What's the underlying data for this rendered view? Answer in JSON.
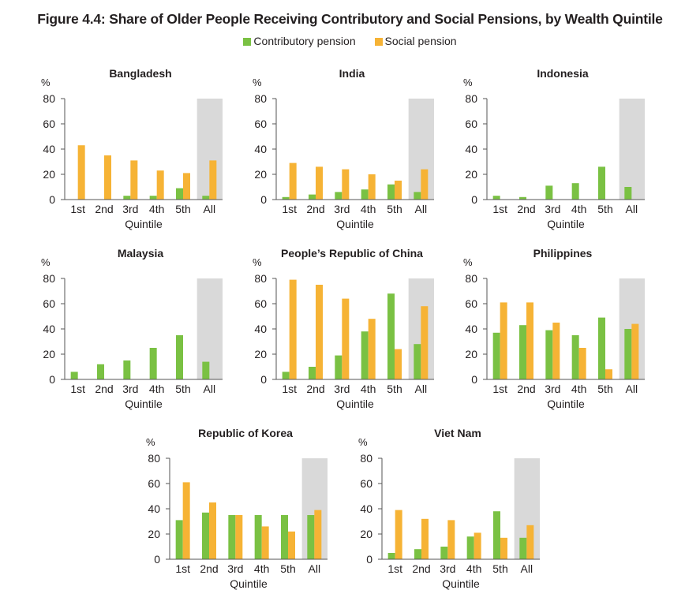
{
  "title": "Figure 4.4: Share of Older People Receiving Contributory and Social Pensions, by Wealth Quintile",
  "legend": {
    "contributory": "Contributory pension",
    "social": "Social pension"
  },
  "colors": {
    "contributory": "#7ac143",
    "social": "#f6b335",
    "all_shade": "#d9d9d9",
    "axis": "#555555"
  },
  "chart_data": [
    {
      "type": "bar",
      "title": "Bangladesh",
      "ylabel": "%",
      "xlabel": "Quintile",
      "ylim": [
        0,
        80
      ],
      "yticks": [
        0,
        20,
        40,
        60,
        80
      ],
      "categories": [
        "1st",
        "2nd",
        "3rd",
        "4th",
        "5th",
        "All"
      ],
      "series": [
        {
          "name": "Contributory pension",
          "values": [
            0,
            0,
            3,
            3,
            9,
            3
          ]
        },
        {
          "name": "Social pension",
          "values": [
            43,
            35,
            31,
            23,
            21,
            31
          ]
        }
      ]
    },
    {
      "type": "bar",
      "title": "India",
      "ylabel": "%",
      "xlabel": "Quintile",
      "ylim": [
        0,
        80
      ],
      "yticks": [
        0,
        20,
        40,
        60,
        80
      ],
      "categories": [
        "1st",
        "2nd",
        "3rd",
        "4th",
        "5th",
        "All"
      ],
      "series": [
        {
          "name": "Contributory pension",
          "values": [
            2,
            4,
            6,
            8,
            12,
            6
          ]
        },
        {
          "name": "Social pension",
          "values": [
            29,
            26,
            24,
            20,
            15,
            24
          ]
        }
      ]
    },
    {
      "type": "bar",
      "title": "Indonesia",
      "ylabel": "%",
      "xlabel": "Quintile",
      "ylim": [
        0,
        80
      ],
      "yticks": [
        0,
        20,
        40,
        60,
        80
      ],
      "categories": [
        "1st",
        "2nd",
        "3rd",
        "4th",
        "5th",
        "All"
      ],
      "series": [
        {
          "name": "Contributory pension",
          "values": [
            3,
            2,
            11,
            13,
            26,
            10
          ]
        },
        {
          "name": "Social pension",
          "values": [
            0,
            0,
            0,
            0,
            0,
            0
          ]
        }
      ]
    },
    {
      "type": "bar",
      "title": "Malaysia",
      "ylabel": "%",
      "xlabel": "Quintile",
      "ylim": [
        0,
        80
      ],
      "yticks": [
        0,
        20,
        40,
        60,
        80
      ],
      "categories": [
        "1st",
        "2nd",
        "3rd",
        "4th",
        "5th",
        "All"
      ],
      "series": [
        {
          "name": "Contributory pension",
          "values": [
            6,
            12,
            15,
            25,
            35,
            14
          ]
        },
        {
          "name": "Social pension",
          "values": [
            0,
            0,
            0,
            0,
            0,
            0
          ]
        }
      ]
    },
    {
      "type": "bar",
      "title": "People’s Republic of China",
      "ylabel": "%",
      "xlabel": "Quintile",
      "ylim": [
        0,
        80
      ],
      "yticks": [
        0,
        20,
        40,
        60,
        80
      ],
      "categories": [
        "1st",
        "2nd",
        "3rd",
        "4th",
        "5th",
        "All"
      ],
      "series": [
        {
          "name": "Contributory pension",
          "values": [
            6,
            10,
            19,
            38,
            68,
            28
          ]
        },
        {
          "name": "Social pension",
          "values": [
            79,
            75,
            64,
            48,
            24,
            58
          ]
        }
      ]
    },
    {
      "type": "bar",
      "title": "Philippines",
      "ylabel": "%",
      "xlabel": "Quintile",
      "ylim": [
        0,
        80
      ],
      "yticks": [
        0,
        20,
        40,
        60,
        80
      ],
      "categories": [
        "1st",
        "2nd",
        "3rd",
        "4th",
        "5th",
        "All"
      ],
      "series": [
        {
          "name": "Contributory pension",
          "values": [
            37,
            43,
            39,
            35,
            49,
            40
          ]
        },
        {
          "name": "Social pension",
          "values": [
            61,
            61,
            45,
            25,
            8,
            44
          ]
        }
      ]
    },
    {
      "type": "bar",
      "title": "Republic of Korea",
      "ylabel": "%",
      "xlabel": "Quintile",
      "ylim": [
        0,
        80
      ],
      "yticks": [
        0,
        20,
        40,
        60,
        80
      ],
      "categories": [
        "1st",
        "2nd",
        "3rd",
        "4th",
        "5th",
        "All"
      ],
      "series": [
        {
          "name": "Contributory pension",
          "values": [
            31,
            37,
            35,
            35,
            35,
            35
          ]
        },
        {
          "name": "Social pension",
          "values": [
            61,
            45,
            35,
            26,
            22,
            39
          ]
        }
      ]
    },
    {
      "type": "bar",
      "title": "Viet Nam",
      "ylabel": "%",
      "xlabel": "Quintile",
      "ylim": [
        0,
        80
      ],
      "yticks": [
        0,
        20,
        40,
        60,
        80
      ],
      "categories": [
        "1st",
        "2nd",
        "3rd",
        "4th",
        "5th",
        "All"
      ],
      "series": [
        {
          "name": "Contributory pension",
          "values": [
            5,
            8,
            10,
            18,
            38,
            17
          ]
        },
        {
          "name": "Social pension",
          "values": [
            39,
            32,
            31,
            21,
            17,
            27
          ]
        }
      ]
    }
  ]
}
